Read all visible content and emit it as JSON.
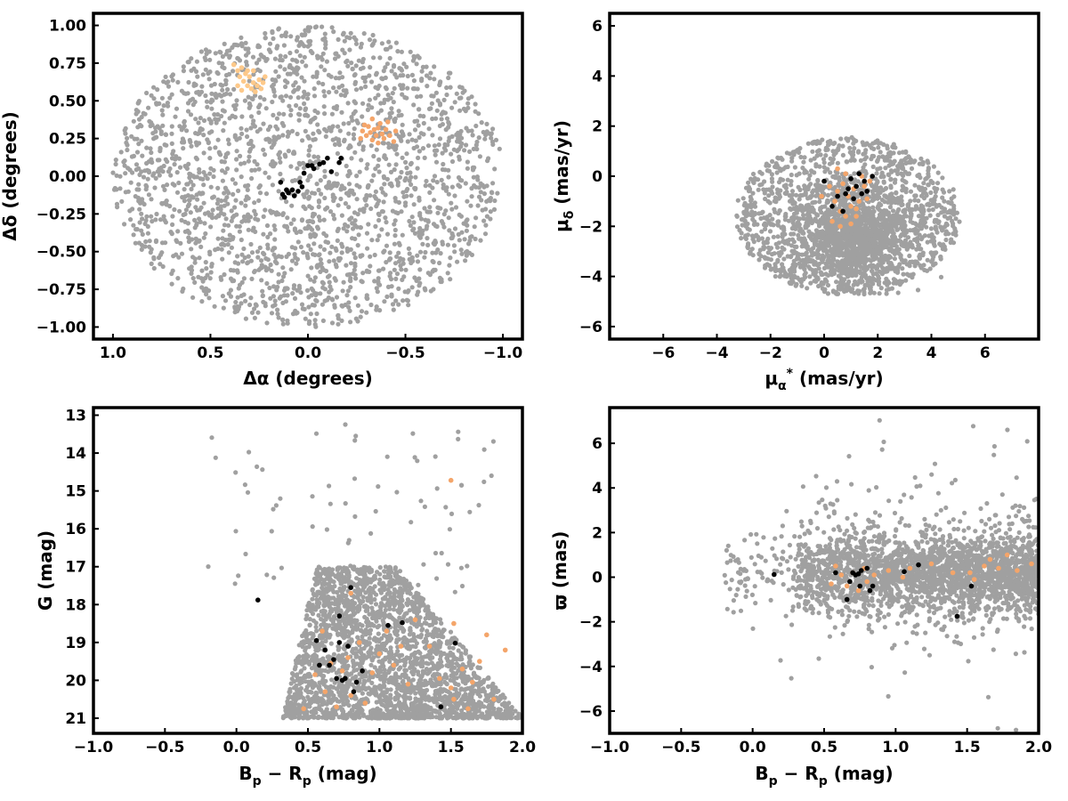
{
  "colors": {
    "field": "#a0a0a0",
    "member_light": "#fdc98a",
    "member_orange": "#f4a56a",
    "member_black": "#000000",
    "frame": "#000000"
  },
  "chart_data": [
    {
      "id": "sky",
      "type": "scatter",
      "xlabel": "Δα (degrees)",
      "ylabel": "Δδ (degrees)",
      "xlim": [
        1.1,
        -1.1
      ],
      "ylim": [
        -1.08,
        1.08
      ],
      "xaxis_inverted": true,
      "xticks": [
        1.0,
        0.5,
        0.0,
        -0.5,
        -1.0
      ],
      "xtick_labels": [
        "1.0",
        "0.5",
        "0.0",
        "−0.5",
        "−1.0"
      ],
      "yticks": [
        1.0,
        0.75,
        0.5,
        0.25,
        0.0,
        -0.25,
        -0.5,
        -0.75,
        -1.0
      ],
      "ytick_labels": [
        "1.00",
        "0.75",
        "0.50",
        "0.25",
        "0.00",
        "−0.25",
        "−0.50",
        "−0.75",
        "−1.00"
      ],
      "grid": false,
      "field": {
        "shape": "disk",
        "center": [
          0.0,
          0.0
        ],
        "radius": 1.0,
        "approx_count": 2200
      },
      "series": [
        {
          "color_key": "member_light",
          "points": [
            [
              0.38,
              0.74
            ],
            [
              0.36,
              0.7
            ],
            [
              0.35,
              0.66
            ],
            [
              0.34,
              0.72
            ],
            [
              0.33,
              0.63
            ],
            [
              0.32,
              0.68
            ],
            [
              0.31,
              0.6
            ],
            [
              0.3,
              0.66
            ],
            [
              0.29,
              0.58
            ],
            [
              0.28,
              0.62
            ],
            [
              0.27,
              0.56
            ],
            [
              0.26,
              0.6
            ],
            [
              0.25,
              0.64
            ],
            [
              0.24,
              0.58
            ],
            [
              0.23,
              0.62
            ],
            [
              0.36,
              0.6
            ],
            [
              0.34,
              0.57
            ],
            [
              0.31,
              0.7
            ],
            [
              0.28,
              0.7
            ],
            [
              0.22,
              0.66
            ]
          ]
        },
        {
          "color_key": "member_orange",
          "points": [
            [
              -0.28,
              0.3
            ],
            [
              -0.3,
              0.27
            ],
            [
              -0.31,
              0.33
            ],
            [
              -0.32,
              0.29
            ],
            [
              -0.33,
              0.24
            ],
            [
              -0.34,
              0.31
            ],
            [
              -0.35,
              0.27
            ],
            [
              -0.36,
              0.22
            ],
            [
              -0.37,
              0.35
            ],
            [
              -0.38,
              0.28
            ],
            [
              -0.39,
              0.25
            ],
            [
              -0.4,
              0.31
            ],
            [
              -0.42,
              0.27
            ],
            [
              -0.44,
              0.23
            ],
            [
              -0.45,
              0.3
            ],
            [
              -0.29,
              0.34
            ],
            [
              -0.33,
              0.38
            ],
            [
              -0.36,
              0.32
            ],
            [
              -0.41,
              0.36
            ],
            [
              -0.27,
              0.25
            ]
          ]
        },
        {
          "color_key": "member_black",
          "points": [
            [
              0.14,
              -0.04
            ],
            [
              0.13,
              -0.12
            ],
            [
              0.12,
              -0.14
            ],
            [
              0.11,
              -0.09
            ],
            [
              0.1,
              -0.11
            ],
            [
              0.08,
              -0.09
            ],
            [
              0.07,
              -0.13
            ],
            [
              0.05,
              -0.1
            ],
            [
              0.04,
              -0.04
            ],
            [
              0.03,
              -0.07
            ],
            [
              0.02,
              0.02
            ],
            [
              0.0,
              0.07
            ],
            [
              -0.02,
              0.07
            ],
            [
              -0.03,
              0.05
            ],
            [
              -0.06,
              0.08
            ],
            [
              -0.08,
              0.09
            ],
            [
              -0.1,
              0.12
            ],
            [
              -0.16,
              0.09
            ],
            [
              -0.17,
              0.12
            ],
            [
              -0.12,
              0.03
            ]
          ]
        }
      ]
    },
    {
      "id": "pm",
      "type": "scatter",
      "xlabel": "μα* (mas/yr)",
      "ylabel": "μδ (mas/yr)",
      "xlim": [
        -8,
        8
      ],
      "ylim": [
        -6.5,
        6.5
      ],
      "xticks": [
        -6,
        -4,
        -2,
        0,
        2,
        4,
        6
      ],
      "xtick_labels": [
        "−6",
        "−4",
        "−2",
        "0",
        "2",
        "4",
        "6"
      ],
      "yticks": [
        -6,
        -4,
        -2,
        0,
        2,
        4,
        6
      ],
      "ytick_labels": [
        "−6",
        "−4",
        "−2",
        "0",
        "2",
        "4",
        "6"
      ],
      "grid": false,
      "field": {
        "shape": "cloud",
        "center": [
          0.9,
          -1.6
        ],
        "core": [
          1.2,
          -2.4
        ],
        "approx_count": 2400
      },
      "series": [
        {
          "color_key": "member_orange",
          "points": [
            [
              -0.1,
              -0.8
            ],
            [
              0.2,
              -0.4
            ],
            [
              0.4,
              -1.0
            ],
            [
              0.5,
              -0.6
            ],
            [
              0.6,
              -1.4
            ],
            [
              0.7,
              -0.3
            ],
            [
              0.8,
              -1.6
            ],
            [
              0.9,
              -0.8
            ],
            [
              1.0,
              -1.2
            ],
            [
              1.1,
              -0.5
            ],
            [
              1.2,
              -1.6
            ],
            [
              1.3,
              -1.0
            ],
            [
              1.4,
              0.0
            ],
            [
              1.5,
              -0.4
            ],
            [
              1.6,
              -0.9
            ],
            [
              1.7,
              -0.2
            ],
            [
              0.3,
              -1.8
            ],
            [
              0.6,
              -2.0
            ],
            [
              1.0,
              -1.9
            ],
            [
              0.8,
              0.1
            ],
            [
              0.5,
              0.3
            ],
            [
              1.2,
              -1.3
            ]
          ]
        },
        {
          "color_key": "member_black",
          "points": [
            [
              0.0,
              -0.2
            ],
            [
              0.3,
              -1.2
            ],
            [
              0.5,
              -0.8
            ],
            [
              0.7,
              -1.4
            ],
            [
              0.9,
              -0.5
            ],
            [
              1.0,
              -0.1
            ],
            [
              1.1,
              -0.9
            ],
            [
              1.2,
              -0.4
            ],
            [
              1.3,
              0.1
            ],
            [
              1.5,
              -0.2
            ],
            [
              1.6,
              -0.6
            ],
            [
              1.8,
              0.0
            ],
            [
              0.8,
              -0.7
            ],
            [
              1.4,
              -0.7
            ]
          ]
        }
      ]
    },
    {
      "id": "cmd",
      "type": "scatter",
      "xlabel": "Bp − Rp (mag)",
      "ylabel": "G (mag)",
      "xlim": [
        -1.0,
        2.0
      ],
      "ylim": [
        21.4,
        12.8
      ],
      "yaxis_inverted": true,
      "xticks": [
        -1.0,
        -0.5,
        0.0,
        0.5,
        1.0,
        1.5,
        2.0
      ],
      "xtick_labels": [
        "−1.0",
        "−0.5",
        "0.0",
        "0.5",
        "1.0",
        "1.5",
        "2.0"
      ],
      "yticks": [
        21,
        20,
        19,
        18,
        17,
        16,
        15,
        14,
        13
      ],
      "ytick_labels": [
        "21",
        "20",
        "19",
        "18",
        "17",
        "16",
        "15",
        "14",
        "13"
      ],
      "grid": false,
      "field": {
        "shape": "cmd",
        "color_range": [
          0.3,
          2.0
        ],
        "mag_range": [
          17.0,
          21.0
        ],
        "approx_count": 2600
      },
      "series": [
        {
          "color_key": "member_orange",
          "points": [
            [
              0.47,
              20.75
            ],
            [
              0.55,
              19.85
            ],
            [
              0.62,
              20.3
            ],
            [
              0.66,
              19.55
            ],
            [
              0.7,
              20.7
            ],
            [
              0.74,
              19.75
            ],
            [
              0.78,
              19.4
            ],
            [
              0.8,
              20.4
            ],
            [
              0.86,
              19.0
            ],
            [
              0.9,
              20.6
            ],
            [
              0.95,
              19.8
            ],
            [
              1.0,
              19.3
            ],
            [
              1.05,
              18.7
            ],
            [
              1.1,
              19.6
            ],
            [
              1.15,
              19.1
            ],
            [
              1.2,
              20.1
            ],
            [
              1.25,
              18.4
            ],
            [
              1.35,
              19.1
            ],
            [
              1.42,
              19.95
            ],
            [
              1.5,
              20.2
            ],
            [
              1.52,
              20.5
            ],
            [
              1.58,
              19.7
            ],
            [
              1.62,
              20.75
            ],
            [
              1.65,
              20.05
            ],
            [
              1.7,
              19.5
            ],
            [
              1.75,
              18.8
            ],
            [
              1.8,
              20.5
            ],
            [
              1.88,
              19.2
            ],
            [
              1.5,
              14.72
            ],
            [
              1.52,
              18.5
            ],
            [
              0.8,
              17.7
            ],
            [
              0.6,
              18.7
            ]
          ]
        },
        {
          "color_key": "member_black",
          "points": [
            [
              0.15,
              17.88
            ],
            [
              0.56,
              18.95
            ],
            [
              0.58,
              19.6
            ],
            [
              0.62,
              19.2
            ],
            [
              0.65,
              19.6
            ],
            [
              0.68,
              19.45
            ],
            [
              0.7,
              19.95
            ],
            [
              0.72,
              19.0
            ],
            [
              0.72,
              18.3
            ],
            [
              0.74,
              20.0
            ],
            [
              0.76,
              19.95
            ],
            [
              0.78,
              19.1
            ],
            [
              0.8,
              17.55
            ],
            [
              0.82,
              20.3
            ],
            [
              0.84,
              20.05
            ],
            [
              0.88,
              19.75
            ],
            [
              1.06,
              18.55
            ],
            [
              1.16,
              18.48
            ],
            [
              1.43,
              20.7
            ],
            [
              1.53,
              19.02
            ]
          ]
        }
      ]
    },
    {
      "id": "parallax",
      "type": "scatter",
      "xlabel": "Bp − Rp (mag)",
      "ylabel": "ϖ (mas)",
      "xlim": [
        -1.0,
        2.0
      ],
      "ylim": [
        -7.0,
        7.6
      ],
      "xticks": [
        -1.0,
        -0.5,
        0.0,
        0.5,
        1.0,
        1.5,
        2.0
      ],
      "xtick_labels": [
        "−1.0",
        "−0.5",
        "0.0",
        "0.5",
        "1.0",
        "1.5",
        "2.0"
      ],
      "yticks": [
        -6,
        -4,
        -2,
        0,
        2,
        4,
        6
      ],
      "ytick_labels": [
        "−6",
        "−4",
        "−2",
        "0",
        "2",
        "4",
        "6"
      ],
      "grid": false,
      "field": {
        "shape": "band",
        "color_range": [
          0.3,
          2.0
        ],
        "center": 0.2,
        "approx_count": 2600
      },
      "series": [
        {
          "color_key": "member_orange",
          "points": [
            [
              0.55,
              -0.3
            ],
            [
              0.58,
              0.5
            ],
            [
              0.62,
              0.1
            ],
            [
              0.66,
              -0.4
            ],
            [
              0.7,
              0.2
            ],
            [
              0.74,
              -0.6
            ],
            [
              0.78,
              0.4
            ],
            [
              0.8,
              -0.2
            ],
            [
              0.85,
              0.1
            ],
            [
              0.95,
              0.3
            ],
            [
              1.05,
              0.0
            ],
            [
              1.1,
              0.4
            ],
            [
              1.25,
              0.6
            ],
            [
              1.4,
              0.2
            ],
            [
              1.52,
              0.2
            ],
            [
              1.55,
              -0.1
            ],
            [
              1.62,
              0.5
            ],
            [
              1.66,
              0.8
            ],
            [
              1.72,
              0.4
            ],
            [
              1.78,
              1.0
            ],
            [
              1.85,
              0.3
            ],
            [
              1.95,
              0.6
            ]
          ]
        },
        {
          "color_key": "member_black",
          "points": [
            [
              0.15,
              0.12
            ],
            [
              0.58,
              0.2
            ],
            [
              0.66,
              -1.0
            ],
            [
              0.68,
              -0.2
            ],
            [
              0.7,
              0.2
            ],
            [
              0.72,
              0.1
            ],
            [
              0.75,
              -0.4
            ],
            [
              0.76,
              0.3
            ],
            [
              0.8,
              0.4
            ],
            [
              0.82,
              -0.6
            ],
            [
              0.84,
              -0.4
            ],
            [
              1.06,
              0.25
            ],
            [
              1.16,
              0.55
            ],
            [
              1.43,
              -1.75
            ],
            [
              1.53,
              -0.4
            ],
            [
              0.74,
              0.15
            ]
          ]
        }
      ]
    }
  ]
}
